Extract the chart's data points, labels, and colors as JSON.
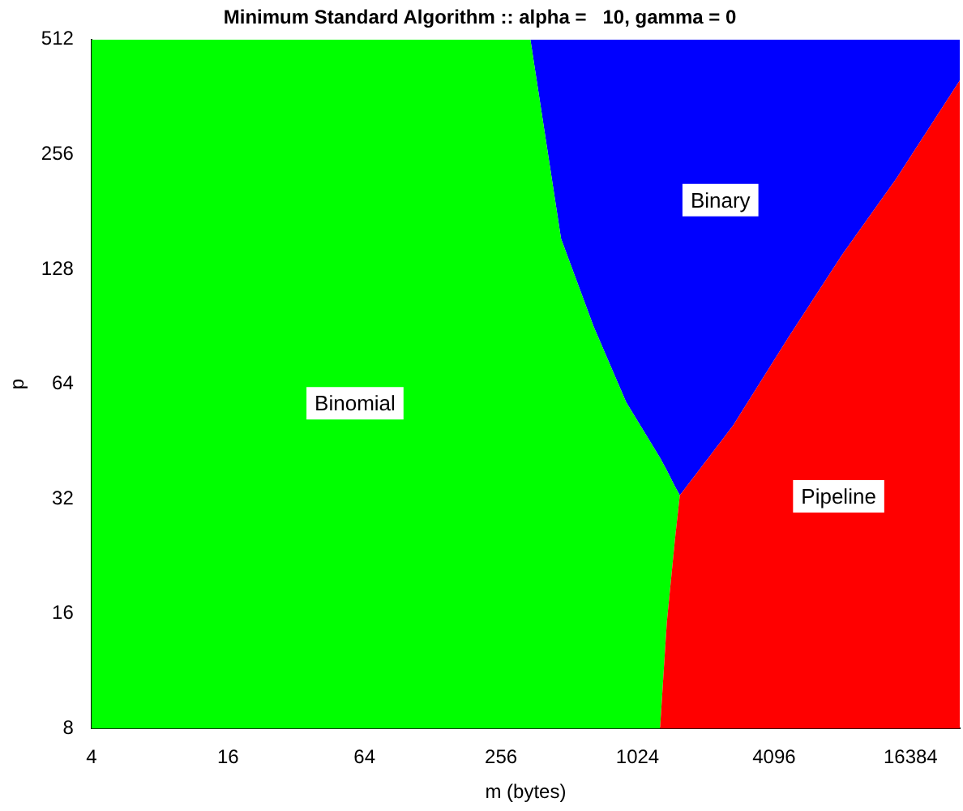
{
  "chart_data": {
    "type": "area",
    "title": "Minimum Standard Algorithm :: alpha =   10, gamma = 0",
    "xlabel": "m (bytes)",
    "ylabel": "p",
    "x": [
      4,
      345,
      471,
      656,
      912,
      1287,
      1379,
      1497,
      1573,
      2705,
      4745,
      8192,
      14150,
      27000
    ],
    "series": [
      {
        "name": "Pipeline",
        "color": "#ff0000",
        "values": [
          8,
          8,
          8,
          8,
          8,
          8,
          15.2,
          25,
          32.7,
          49.9,
          85,
          140,
          221,
          400
        ]
      },
      {
        "name": "Binomial",
        "color": "#00ff00",
        "values": [
          512,
          512,
          154,
          90.5,
          57.4,
          41,
          38,
          34.5,
          32.7,
          49.9,
          85,
          140,
          221,
          400
        ]
      },
      {
        "name": "Binary",
        "color": "#0000ff",
        "values": [
          512,
          512,
          512,
          512,
          512,
          512,
          512,
          512,
          512,
          512,
          512,
          512,
          512,
          512
        ]
      }
    ],
    "log": "xy",
    "xlim": [
      4,
      27000
    ],
    "ylim": [
      8,
      512
    ],
    "xticks": [
      4,
      16,
      64,
      256,
      1024,
      4096,
      16384
    ],
    "yticks": [
      8,
      16,
      32,
      64,
      128,
      256,
      512
    ],
    "grid": false,
    "legend": false
  }
}
